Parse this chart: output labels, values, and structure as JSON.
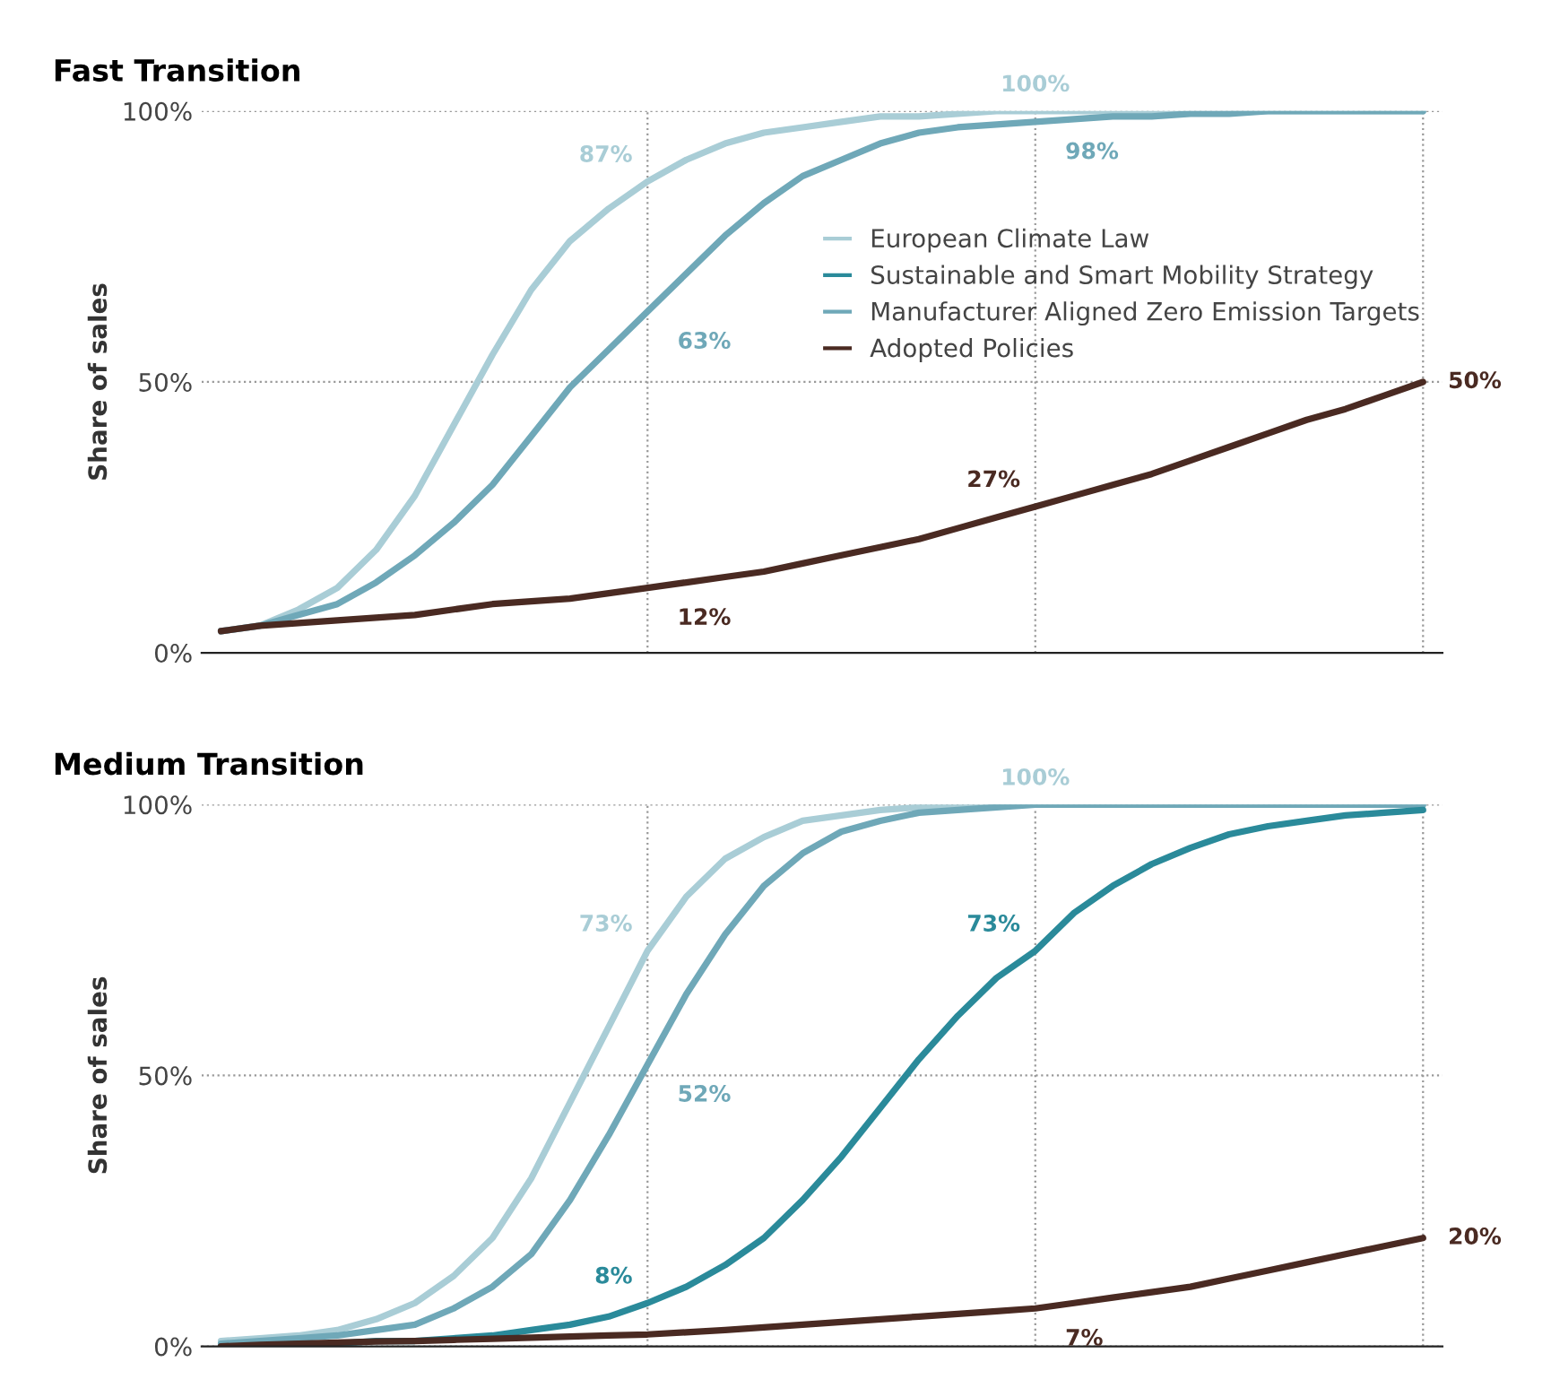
{
  "chart_data": [
    {
      "type": "line",
      "title": "Fast Transition",
      "ylabel": "Share of sales",
      "categories": [
        null,
        null,
        null,
        null,
        null,
        null,
        null,
        null,
        null,
        null,
        null,
        null,
        null,
        null,
        null,
        null,
        null,
        null,
        null,
        null,
        null,
        null,
        null,
        null,
        null,
        null,
        null,
        null,
        null,
        null,
        null,
        null
      ],
      "ylim": [
        0,
        100
      ],
      "yticks": [
        {
          "value": 0,
          "label": "0%"
        },
        {
          "value": 50,
          "label": "50%"
        },
        {
          "value": 100,
          "label": "100%"
        }
      ],
      "grid": true,
      "legend": "center right",
      "line_style": "solid",
      "marker": "none",
      "series": [
        {
          "name": "European Climate Law",
          "color": "#a9cdd6",
          "values": [
            4,
            5,
            8,
            12,
            19,
            29,
            42,
            55,
            67,
            76,
            82,
            87,
            91,
            94,
            96,
            97,
            98,
            99,
            99,
            99.5,
            100,
            100,
            100,
            100,
            100,
            100,
            100,
            100,
            100,
            100,
            100,
            100
          ],
          "value_labels": [
            null,
            null,
            null,
            null,
            null,
            null,
            null,
            null,
            null,
            null,
            null,
            "87%",
            null,
            null,
            null,
            null,
            null,
            null,
            null,
            null,
            null,
            "100%",
            null,
            null,
            null,
            null,
            null,
            null,
            null,
            null,
            null,
            null
          ]
        },
        {
          "name": "Sustainable and Smart Mobility Strategy",
          "color": "#2a8a9a",
          "values": [
            null,
            null,
            null,
            null,
            null,
            null,
            null,
            null,
            null,
            null,
            null,
            null,
            null,
            null,
            null,
            null,
            null,
            null,
            null,
            null,
            null,
            null,
            null,
            null,
            null,
            null,
            null,
            null,
            null,
            null,
            null,
            null
          ]
        },
        {
          "name": "Manufacturer Aligned Zero Emission Targets",
          "color": "#6fa8b8",
          "values": [
            4,
            5,
            7,
            9,
            13,
            18,
            24,
            31,
            40,
            49,
            56,
            63,
            70,
            77,
            83,
            88,
            91,
            94,
            96,
            97,
            97.5,
            98,
            98.5,
            99,
            99,
            99.5,
            99.5,
            100,
            100,
            100,
            100,
            100
          ],
          "value_labels": [
            null,
            null,
            null,
            null,
            null,
            null,
            null,
            null,
            null,
            null,
            null,
            "63%",
            null,
            null,
            null,
            null,
            null,
            null,
            null,
            null,
            null,
            "98%",
            null,
            null,
            null,
            null,
            null,
            null,
            null,
            null,
            null,
            null
          ]
        },
        {
          "name": "Adopted Policies",
          "color": "#4a2a22",
          "values": [
            4,
            5,
            5.5,
            6,
            6.5,
            7,
            8,
            9,
            9.5,
            10,
            11,
            12,
            13,
            14,
            15,
            16.5,
            18,
            19.5,
            21,
            23,
            25,
            27,
            29,
            31,
            33,
            35.5,
            38,
            40.5,
            43,
            45,
            47.5,
            50
          ],
          "value_labels": [
            null,
            null,
            null,
            null,
            null,
            null,
            null,
            null,
            null,
            null,
            null,
            "12%",
            null,
            null,
            null,
            null,
            null,
            null,
            null,
            null,
            null,
            "27%",
            null,
            null,
            null,
            null,
            null,
            null,
            null,
            null,
            null,
            "50%"
          ]
        }
      ]
    },
    {
      "type": "line",
      "title": "Medium Transition",
      "ylabel": "Share of sales",
      "categories": [
        null,
        null,
        null,
        null,
        null,
        null,
        null,
        null,
        null,
        null,
        null,
        null,
        null,
        null,
        null,
        null,
        null,
        null,
        null,
        null,
        null,
        null,
        null,
        null,
        null,
        null,
        null,
        null,
        null,
        null,
        null,
        null
      ],
      "ylim": [
        0,
        100
      ],
      "yticks": [
        {
          "value": 0,
          "label": "0%"
        },
        {
          "value": 50,
          "label": "50%"
        },
        {
          "value": 100,
          "label": "100%"
        }
      ],
      "grid": true,
      "line_style": "solid",
      "marker": "none",
      "series": [
        {
          "color": "#a9cdd6",
          "values": [
            1,
            1.5,
            2,
            3,
            5,
            8,
            13,
            20,
            31,
            45,
            59,
            73,
            83,
            90,
            94,
            97,
            98,
            99,
            99.5,
            99.5,
            100,
            100,
            100,
            100,
            100,
            100,
            100,
            100,
            100,
            100,
            100,
            100
          ],
          "value_labels": [
            null,
            null,
            null,
            null,
            null,
            null,
            null,
            null,
            null,
            null,
            null,
            "73%",
            null,
            null,
            null,
            null,
            null,
            null,
            null,
            null,
            null,
            "100%",
            null,
            null,
            null,
            null,
            null,
            null,
            null,
            null,
            null,
            null
          ]
        },
        {
          "color": "#6fa8b8",
          "values": [
            0.5,
            1,
            1.5,
            2,
            3,
            4,
            7,
            11,
            17,
            27,
            39,
            52,
            65,
            76,
            85,
            91,
            95,
            97,
            98.5,
            99,
            99.5,
            100,
            100,
            100,
            100,
            100,
            100,
            100,
            100,
            100,
            100,
            100
          ],
          "value_labels": [
            null,
            null,
            null,
            null,
            null,
            null,
            null,
            null,
            null,
            null,
            null,
            "52%",
            null,
            null,
            null,
            null,
            null,
            null,
            null,
            null,
            null,
            null,
            null,
            null,
            null,
            null,
            null,
            null,
            null,
            null,
            null,
            null
          ]
        },
        {
          "color": "#2a8a9a",
          "values": [
            0,
            0,
            0.5,
            0.5,
            1,
            1,
            1.5,
            2,
            3,
            4,
            5.5,
            8,
            11,
            15,
            20,
            27,
            35,
            44,
            53,
            61,
            68,
            73,
            80,
            85,
            89,
            92,
            94.5,
            96,
            97,
            98,
            98.5,
            99
          ],
          "value_labels": [
            null,
            null,
            null,
            null,
            null,
            null,
            null,
            null,
            null,
            null,
            null,
            "8%",
            null,
            null,
            null,
            null,
            null,
            null,
            null,
            null,
            null,
            "73%",
            null,
            null,
            null,
            null,
            null,
            null,
            null,
            null,
            null,
            null
          ]
        },
        {
          "color": "#4a2a22",
          "values": [
            0,
            0.3,
            0.5,
            0.7,
            0.9,
            1,
            1.2,
            1.4,
            1.6,
            1.8,
            2,
            2.2,
            2.6,
            3,
            3.5,
            4,
            4.5,
            5,
            5.5,
            6,
            6.5,
            7,
            8,
            9,
            10,
            11,
            12.5,
            14,
            15.5,
            17,
            18.5,
            20
          ],
          "value_labels": [
            null,
            null,
            null,
            null,
            null,
            null,
            null,
            null,
            null,
            null,
            null,
            null,
            null,
            null,
            null,
            null,
            null,
            null,
            null,
            null,
            null,
            "7%",
            null,
            null,
            null,
            null,
            null,
            null,
            null,
            null,
            null,
            "20%"
          ]
        }
      ]
    }
  ]
}
